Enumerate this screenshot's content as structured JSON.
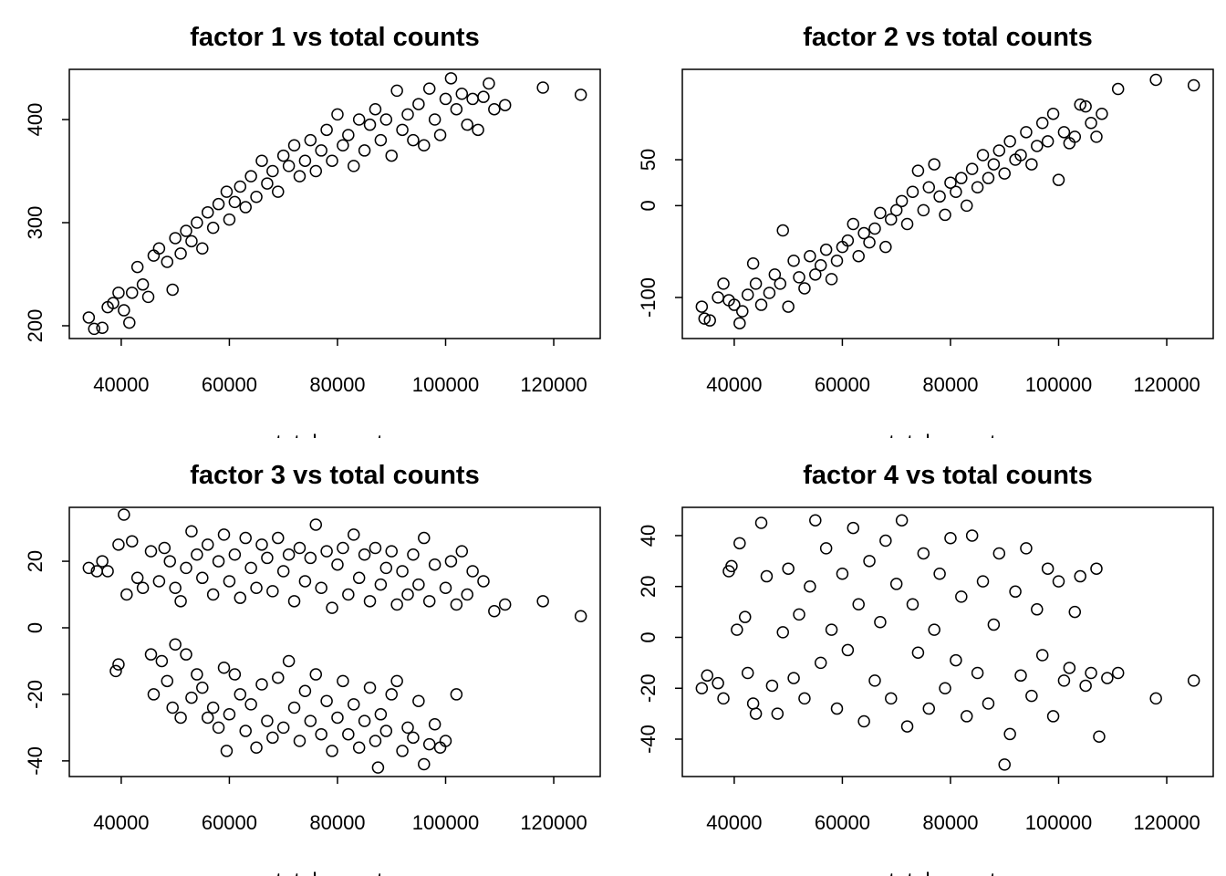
{
  "chart_data": [
    {
      "type": "scatter",
      "title": "factor 1 vs total counts",
      "x_label": "total_counts",
      "color": "#000000",
      "xlim": [
        30400,
        128600
      ],
      "ylim": [
        187.6,
        448.7
      ],
      "xticks": [
        40000,
        60000,
        80000,
        100000,
        120000
      ],
      "yticks": [
        200,
        300,
        400
      ],
      "x": [
        34000,
        35000,
        36500,
        37500,
        38500,
        39500,
        40500,
        41500,
        42000,
        43000,
        44000,
        45000,
        46000,
        47000,
        48500,
        49500,
        50000,
        51000,
        52000,
        53000,
        54000,
        55000,
        56000,
        57000,
        58000,
        59500,
        60000,
        61000,
        62000,
        63000,
        64000,
        65000,
        66000,
        67000,
        68000,
        69000,
        70000,
        71000,
        72000,
        73000,
        74000,
        75000,
        76000,
        77000,
        78000,
        79000,
        80000,
        81000,
        82000,
        83000,
        84000,
        85000,
        86000,
        87000,
        88000,
        89000,
        90000,
        91000,
        92000,
        93000,
        94000,
        95000,
        96000,
        97000,
        98000,
        99000,
        100000,
        101000,
        102000,
        103000,
        104000,
        105000,
        106000,
        107000,
        108000,
        109000,
        111000,
        118000,
        125000
      ],
      "values": [
        208,
        197,
        198,
        218,
        222,
        232,
        215,
        203,
        232,
        257,
        240,
        228,
        268,
        275,
        262,
        235,
        285,
        270,
        292,
        282,
        300,
        275,
        310,
        295,
        318,
        330,
        303,
        320,
        335,
        315,
        345,
        325,
        360,
        338,
        350,
        330,
        365,
        355,
        375,
        345,
        360,
        380,
        350,
        370,
        390,
        360,
        405,
        375,
        385,
        355,
        400,
        370,
        395,
        410,
        380,
        400,
        365,
        428,
        390,
        405,
        380,
        415,
        375,
        430,
        400,
        385,
        420,
        440,
        410,
        425,
        395,
        420,
        390,
        422,
        435,
        410,
        414,
        431,
        424
      ]
    },
    {
      "type": "scatter",
      "title": "factor 2 vs total counts",
      "x_label": "total_counts",
      "color": "#000000",
      "xlim": [
        30400,
        128600
      ],
      "ylim": [
        -144.7,
        148.4
      ],
      "xticks": [
        40000,
        60000,
        80000,
        100000,
        120000
      ],
      "yticks": [
        -100,
        0,
        50
      ],
      "x": [
        34000,
        34500,
        35500,
        37000,
        38000,
        39000,
        40000,
        41000,
        41500,
        42500,
        43500,
        44000,
        45000,
        46500,
        47500,
        48500,
        49000,
        50000,
        51000,
        52000,
        53000,
        54000,
        55000,
        56000,
        57000,
        58000,
        59000,
        60000,
        61000,
        62000,
        63000,
        64000,
        65000,
        66000,
        67000,
        68000,
        69000,
        70000,
        71000,
        72000,
        73000,
        74000,
        75000,
        76000,
        77000,
        78000,
        79000,
        80000,
        81000,
        82000,
        83000,
        84000,
        85000,
        86000,
        87000,
        88000,
        89000,
        90000,
        91000,
        92000,
        93000,
        94000,
        95000,
        96000,
        97000,
        98000,
        99000,
        100000,
        101000,
        102000,
        103000,
        104000,
        105000,
        106000,
        107000,
        108000,
        111000,
        118000,
        125000
      ],
      "values": [
        -110,
        -123,
        -125,
        -100,
        -85,
        -103,
        -108,
        -128,
        -115,
        -97,
        -63,
        -85,
        -108,
        -95,
        -75,
        -85,
        -27,
        -110,
        -60,
        -78,
        -90,
        -55,
        -75,
        -65,
        -48,
        -80,
        -60,
        -45,
        -38,
        -20,
        -55,
        -30,
        -40,
        -25,
        -8,
        -45,
        -15,
        -5,
        5,
        -20,
        15,
        38,
        -5,
        20,
        45,
        10,
        -10,
        25,
        15,
        30,
        0,
        40,
        20,
        55,
        30,
        45,
        60,
        35,
        70,
        50,
        55,
        80,
        45,
        65,
        90,
        70,
        100,
        28,
        80,
        68,
        75,
        110,
        108,
        90,
        75,
        100,
        127,
        137,
        131
      ]
    },
    {
      "type": "scatter",
      "title": "factor 3 vs total counts",
      "x_label": "total_counts",
      "color": "#000000",
      "xlim": [
        30400,
        128600
      ],
      "ylim": [
        -44.7,
        36.2
      ],
      "xticks": [
        40000,
        60000,
        80000,
        100000,
        120000
      ],
      "yticks": [
        -40,
        -20,
        0,
        20
      ],
      "x": [
        34000,
        35500,
        36500,
        37500,
        39500,
        40500,
        41000,
        42000,
        43000,
        44000,
        45500,
        47000,
        48000,
        49000,
        50000,
        51000,
        52000,
        53000,
        54000,
        55000,
        56000,
        57000,
        58000,
        59000,
        60000,
        61000,
        62000,
        63000,
        64000,
        65000,
        66000,
        67000,
        68000,
        69000,
        70000,
        71000,
        72000,
        73000,
        74000,
        75000,
        76000,
        77000,
        78000,
        79000,
        80000,
        81000,
        82000,
        83000,
        84000,
        85000,
        86000,
        87000,
        88000,
        89000,
        90000,
        91000,
        92000,
        93000,
        94000,
        95000,
        96000,
        97000,
        98000,
        100000,
        101000,
        102000,
        103000,
        104000,
        105000,
        107000,
        109000,
        111000,
        118000,
        125000,
        39000,
        39500,
        45500,
        46000,
        47500,
        48500,
        49500,
        50000,
        51000,
        52000,
        53000,
        54000,
        55000,
        56000,
        57000,
        58000,
        59000,
        59500,
        60000,
        61000,
        62000,
        63000,
        64000,
        65000,
        66000,
        67000,
        68000,
        69000,
        70000,
        71000,
        72000,
        73000,
        74000,
        75000,
        76000,
        77000,
        78000,
        79000,
        80000,
        81000,
        82000,
        83000,
        84000,
        85000,
        86000,
        87000,
        87500,
        88000,
        89000,
        90000,
        91000,
        92000,
        93000,
        94000,
        95000,
        96000,
        97000,
        98000,
        99000,
        100000,
        102000
      ],
      "values": [
        18,
        17,
        20,
        17,
        25,
        34,
        10,
        26,
        15,
        12,
        23,
        14,
        24,
        20,
        12,
        8,
        18,
        29,
        22,
        15,
        25,
        10,
        20,
        28,
        14,
        22,
        9,
        27,
        18,
        12,
        25,
        21,
        11,
        27,
        17,
        22,
        8,
        24,
        14,
        21,
        31,
        12,
        23,
        6,
        19,
        24,
        10,
        28,
        15,
        22,
        8,
        24,
        13,
        18,
        23,
        7,
        17,
        10,
        22,
        13,
        27,
        8,
        19,
        12,
        20,
        7,
        23,
        10,
        17,
        14,
        5,
        7,
        8,
        3.5,
        -13,
        -11,
        -8,
        -20,
        -10,
        -16,
        -24,
        -5,
        -27,
        -8,
        -21,
        -14,
        -18,
        -27,
        -24,
        -30,
        -12,
        -37,
        -26,
        -14,
        -20,
        -31,
        -23,
        -36,
        -17,
        -28,
        -33,
        -15,
        -30,
        -10,
        -24,
        -34,
        -19,
        -28,
        -14,
        -32,
        -22,
        -37,
        -27,
        -16,
        -32,
        -23,
        -36,
        -28,
        -18,
        -34,
        -42,
        -26,
        -31,
        -20,
        -16,
        -37,
        -30,
        -33,
        -22,
        -41,
        -35,
        -29,
        -36,
        -34,
        -20
      ]
    },
    {
      "type": "scatter",
      "title": "factor 4 vs total counts",
      "x_label": "total_counts",
      "color": "#000000",
      "xlim": [
        30400,
        128600
      ],
      "ylim": [
        -54.7,
        51.1
      ],
      "xticks": [
        40000,
        60000,
        80000,
        100000,
        120000
      ],
      "yticks": [
        -40,
        -20,
        0,
        20,
        40
      ],
      "x": [
        34000,
        35000,
        37000,
        38000,
        39000,
        39500,
        40500,
        41000,
        42000,
        42500,
        43500,
        44000,
        45000,
        46000,
        47000,
        48000,
        49000,
        50000,
        51000,
        52000,
        53000,
        54000,
        55000,
        56000,
        57000,
        58000,
        59000,
        60000,
        61000,
        62000,
        63000,
        64000,
        65000,
        66000,
        67000,
        68000,
        69000,
        70000,
        71000,
        72000,
        73000,
        74000,
        75000,
        76000,
        77000,
        78000,
        79000,
        80000,
        81000,
        82000,
        83000,
        84000,
        85000,
        86000,
        87000,
        88000,
        89000,
        90000,
        91000,
        92000,
        93000,
        94000,
        95000,
        96000,
        97000,
        98000,
        99000,
        100000,
        101000,
        102000,
        103000,
        104000,
        105000,
        106000,
        107000,
        107500,
        109000,
        111000,
        118000,
        125000
      ],
      "values": [
        -20,
        -15,
        -18,
        -24,
        26,
        28,
        3,
        37,
        8,
        -14,
        -26,
        -30,
        45,
        24,
        -19,
        -30,
        2,
        27,
        -16,
        9,
        -24,
        20,
        46,
        -10,
        35,
        3,
        -28,
        25,
        -5,
        43,
        13,
        -33,
        30,
        -17,
        6,
        38,
        -24,
        21,
        46,
        -35,
        13,
        -6,
        33,
        -28,
        3,
        25,
        -20,
        39,
        -9,
        16,
        -31,
        40,
        -14,
        22,
        -26,
        5,
        33,
        -50,
        -38,
        18,
        -15,
        35,
        -23,
        11,
        -7,
        27,
        -31,
        22,
        -17,
        -12,
        10,
        24,
        -19,
        -14,
        27,
        -39,
        -16,
        -14,
        -24,
        -17
      ]
    }
  ]
}
